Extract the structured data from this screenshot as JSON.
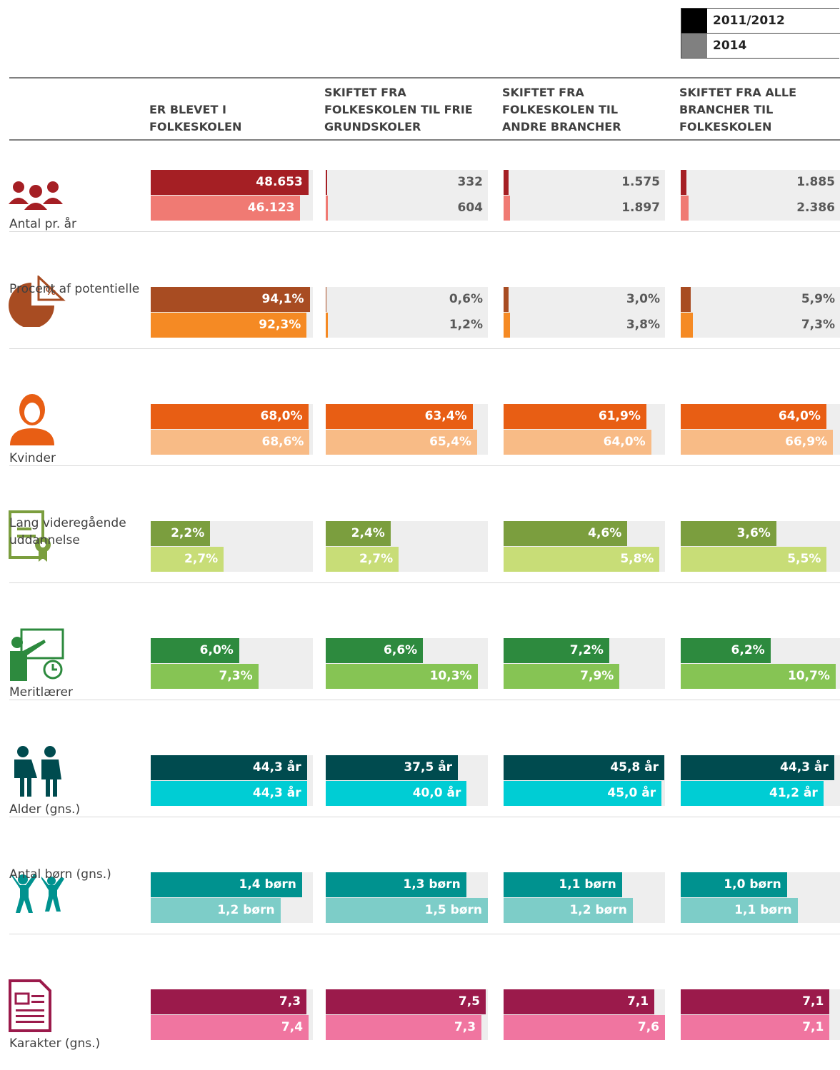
{
  "legend": [
    {
      "label": "2011/2012",
      "color": "#000000"
    },
    {
      "label": "2014",
      "color": "#808080"
    }
  ],
  "columns": [
    "ER BLEVET I FOLKESKOLEN",
    "SKIFTET FRA FOLKESKOLEN TIL FRIE GRUNDSKOLER",
    "SKIFTET FRA FOLKESKOLEN TIL ANDRE BRANCHER",
    "SKIFTET FRA ALLE BRANCHER TIL FOLKESKOLEN"
  ],
  "rows": [
    {
      "label": "Antal pr. år",
      "colors": [
        "#a51f24",
        "#f07a73"
      ],
      "xlim": [
        0,
        50000
      ],
      "values": [
        [
          48653,
          46123
        ],
        [
          332,
          604
        ],
        [
          1575,
          1897
        ],
        [
          1885,
          2386
        ]
      ],
      "value_labels": [
        [
          "48.653",
          "46.123"
        ],
        [
          "332",
          "604"
        ],
        [
          "1.575",
          "1.897"
        ],
        [
          "1.885",
          "2.386"
        ]
      ]
    },
    {
      "label": "Procent af potentielle",
      "colors": [
        "#a84c22",
        "#f58a24"
      ],
      "xlim": [
        0,
        96
      ],
      "values": [
        [
          94.1,
          92.3
        ],
        [
          0.6,
          1.2
        ],
        [
          3.0,
          3.8
        ],
        [
          5.9,
          7.3
        ]
      ],
      "value_labels": [
        [
          "94,1%",
          "92,3%"
        ],
        [
          "0,6%",
          "1,2%"
        ],
        [
          "3,0%",
          "3,8%"
        ],
        [
          "5,9%",
          "7,3%"
        ]
      ]
    },
    {
      "label": "Kvinder",
      "colors": [
        "#e85e14",
        "#f8bb86"
      ],
      "xlim": [
        0,
        70
      ],
      "values": [
        [
          68.0,
          68.6
        ],
        [
          63.4,
          65.4
        ],
        [
          61.9,
          64.0
        ],
        [
          64.0,
          66.9
        ]
      ],
      "value_labels": [
        [
          "68,0%",
          "68,6%"
        ],
        [
          "63,4%",
          "65,4%"
        ],
        [
          "61,9%",
          "64,0%"
        ],
        [
          "64,0%",
          "66,9%"
        ]
      ]
    },
    {
      "label": "Lang videregående uddannelse",
      "colors": [
        "#7b9e3e",
        "#c8dd77"
      ],
      "xlim": [
        0,
        6
      ],
      "values": [
        [
          2.2,
          2.7
        ],
        [
          2.4,
          2.7
        ],
        [
          4.6,
          5.8
        ],
        [
          3.6,
          5.5
        ]
      ],
      "value_labels": [
        [
          "2,2%",
          "2,7%"
        ],
        [
          "2,4%",
          "2,7%"
        ],
        [
          "4,6%",
          "5,8%"
        ],
        [
          "3,6%",
          "5,5%"
        ]
      ]
    },
    {
      "label": "Meritlærer",
      "colors": [
        "#2d8a3e",
        "#86c454"
      ],
      "xlim": [
        0,
        11
      ],
      "values": [
        [
          6.0,
          7.3
        ],
        [
          6.6,
          10.3
        ],
        [
          7.2,
          7.9
        ],
        [
          6.2,
          10.7
        ]
      ],
      "value_labels": [
        [
          "6,0%",
          "7,3%"
        ],
        [
          "6,6%",
          "10,3%"
        ],
        [
          "7,2%",
          "7,9%"
        ],
        [
          "6,2%",
          "10,7%"
        ]
      ]
    },
    {
      "label": "Alder (gns.)",
      "colors": [
        "#004b4f",
        "#00cdd4"
      ],
      "xlim": [
        0,
        46
      ],
      "values": [
        [
          44.3,
          44.3
        ],
        [
          37.5,
          40.0
        ],
        [
          45.8,
          45.0
        ],
        [
          44.3,
          41.2
        ]
      ],
      "value_labels": [
        [
          "44,3 år",
          "44,3 år"
        ],
        [
          "37,5 år",
          "40,0 år"
        ],
        [
          "45,8 år",
          "45,0 år"
        ],
        [
          "44,3 år",
          "41,2 år"
        ]
      ]
    },
    {
      "label": "Antal børn (gns.)",
      "colors": [
        "#00928f",
        "#7dcdc8"
      ],
      "xlim": [
        0,
        1.5
      ],
      "values": [
        [
          1.4,
          1.2
        ],
        [
          1.3,
          1.5
        ],
        [
          1.1,
          1.2
        ],
        [
          1.0,
          1.1
        ]
      ],
      "value_labels": [
        [
          "1,4 børn",
          "1,2 børn"
        ],
        [
          "1,3 børn",
          "1,5 børn"
        ],
        [
          "1,1 børn",
          "1,2 børn"
        ],
        [
          "1,0 børn",
          "1,1 børn"
        ]
      ]
    },
    {
      "label": "Karakter (gns.)",
      "colors": [
        "#9b1a4b",
        "#f075a0"
      ],
      "xlim": [
        0,
        7.6
      ],
      "values": [
        [
          7.3,
          7.4
        ],
        [
          7.5,
          7.3
        ],
        [
          7.1,
          7.6
        ],
        [
          7.1,
          7.1
        ]
      ],
      "value_labels": [
        [
          "7,3",
          "7,4"
        ],
        [
          "7,5",
          "7,3"
        ],
        [
          "7,1",
          "7,6"
        ],
        [
          "7,1",
          "7,1"
        ]
      ]
    }
  ]
}
